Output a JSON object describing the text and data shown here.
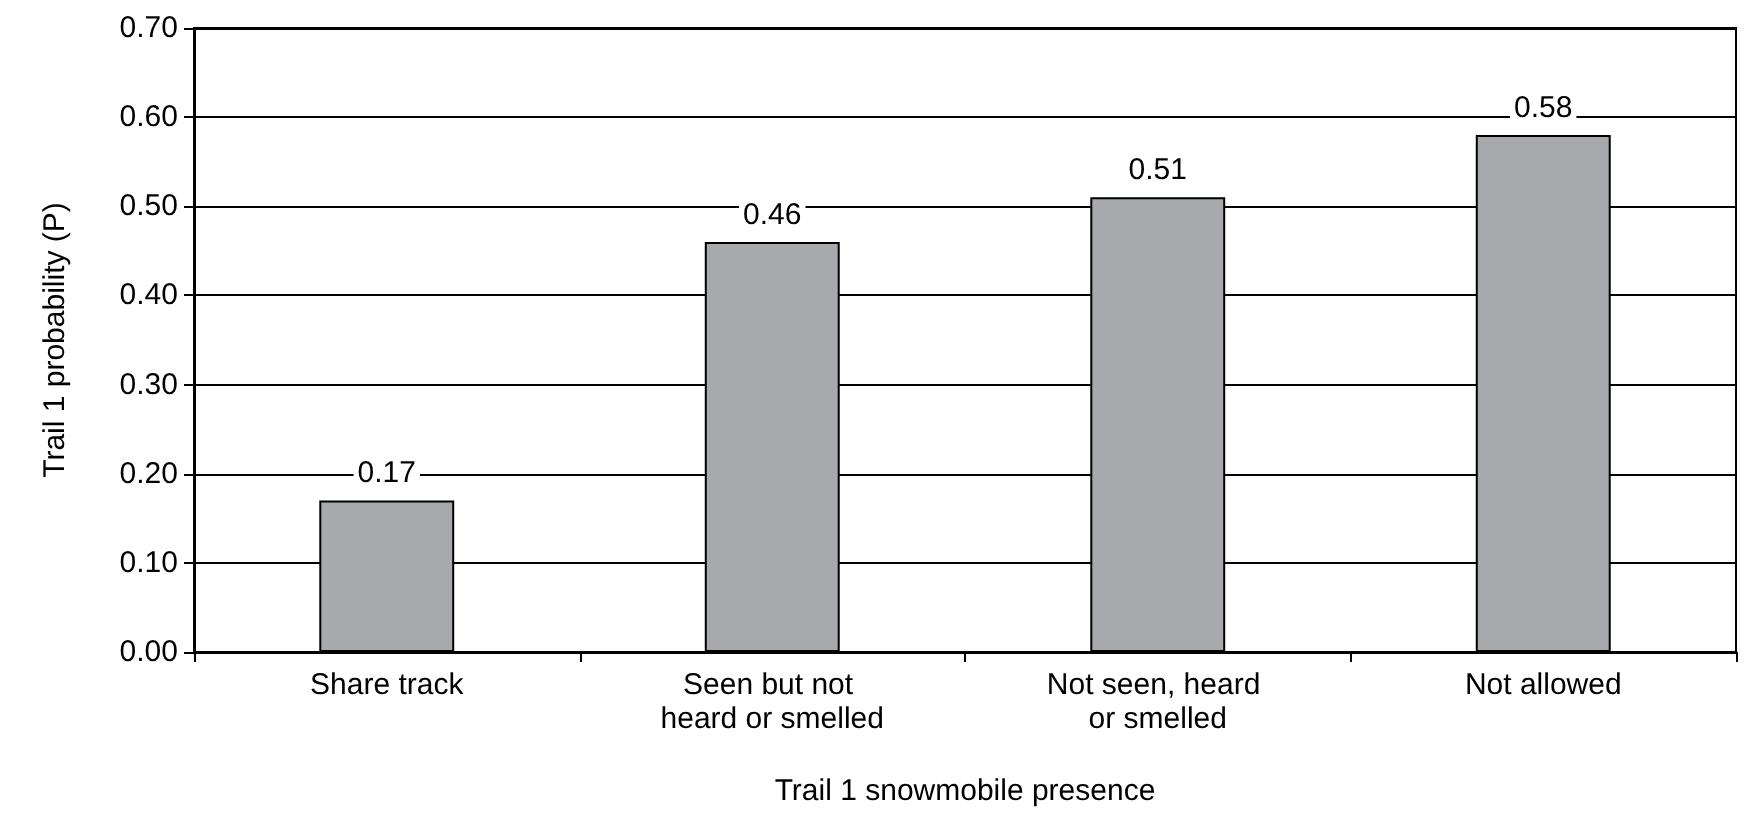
{
  "chart_data": {
    "type": "bar",
    "xlabel": "Trail 1 snowmobile presence",
    "ylabel": "Trail 1 probability (P)",
    "categories": [
      "Share track",
      "Seen but not heard or smelled",
      "Not seen, heard or smelled",
      "Not allowed"
    ],
    "values": [
      0.17,
      0.46,
      0.51,
      0.58
    ],
    "color": "#a7a9ac",
    "ylim": [
      0,
      0.7
    ],
    "yticks": [
      {
        "value": 0,
        "label": "0.00"
      },
      {
        "value": 0.1,
        "label": "0.10"
      },
      {
        "value": 0.2,
        "label": "0.20"
      },
      {
        "value": 0.3,
        "label": "0.30"
      },
      {
        "value": 0.4,
        "label": "0.40"
      },
      {
        "value": 0.5,
        "label": "0.50"
      },
      {
        "value": 0.6,
        "label": "0.60"
      },
      {
        "value": 0.7,
        "label": "0.70"
      }
    ],
    "grid": "y",
    "data_labels": true
  }
}
